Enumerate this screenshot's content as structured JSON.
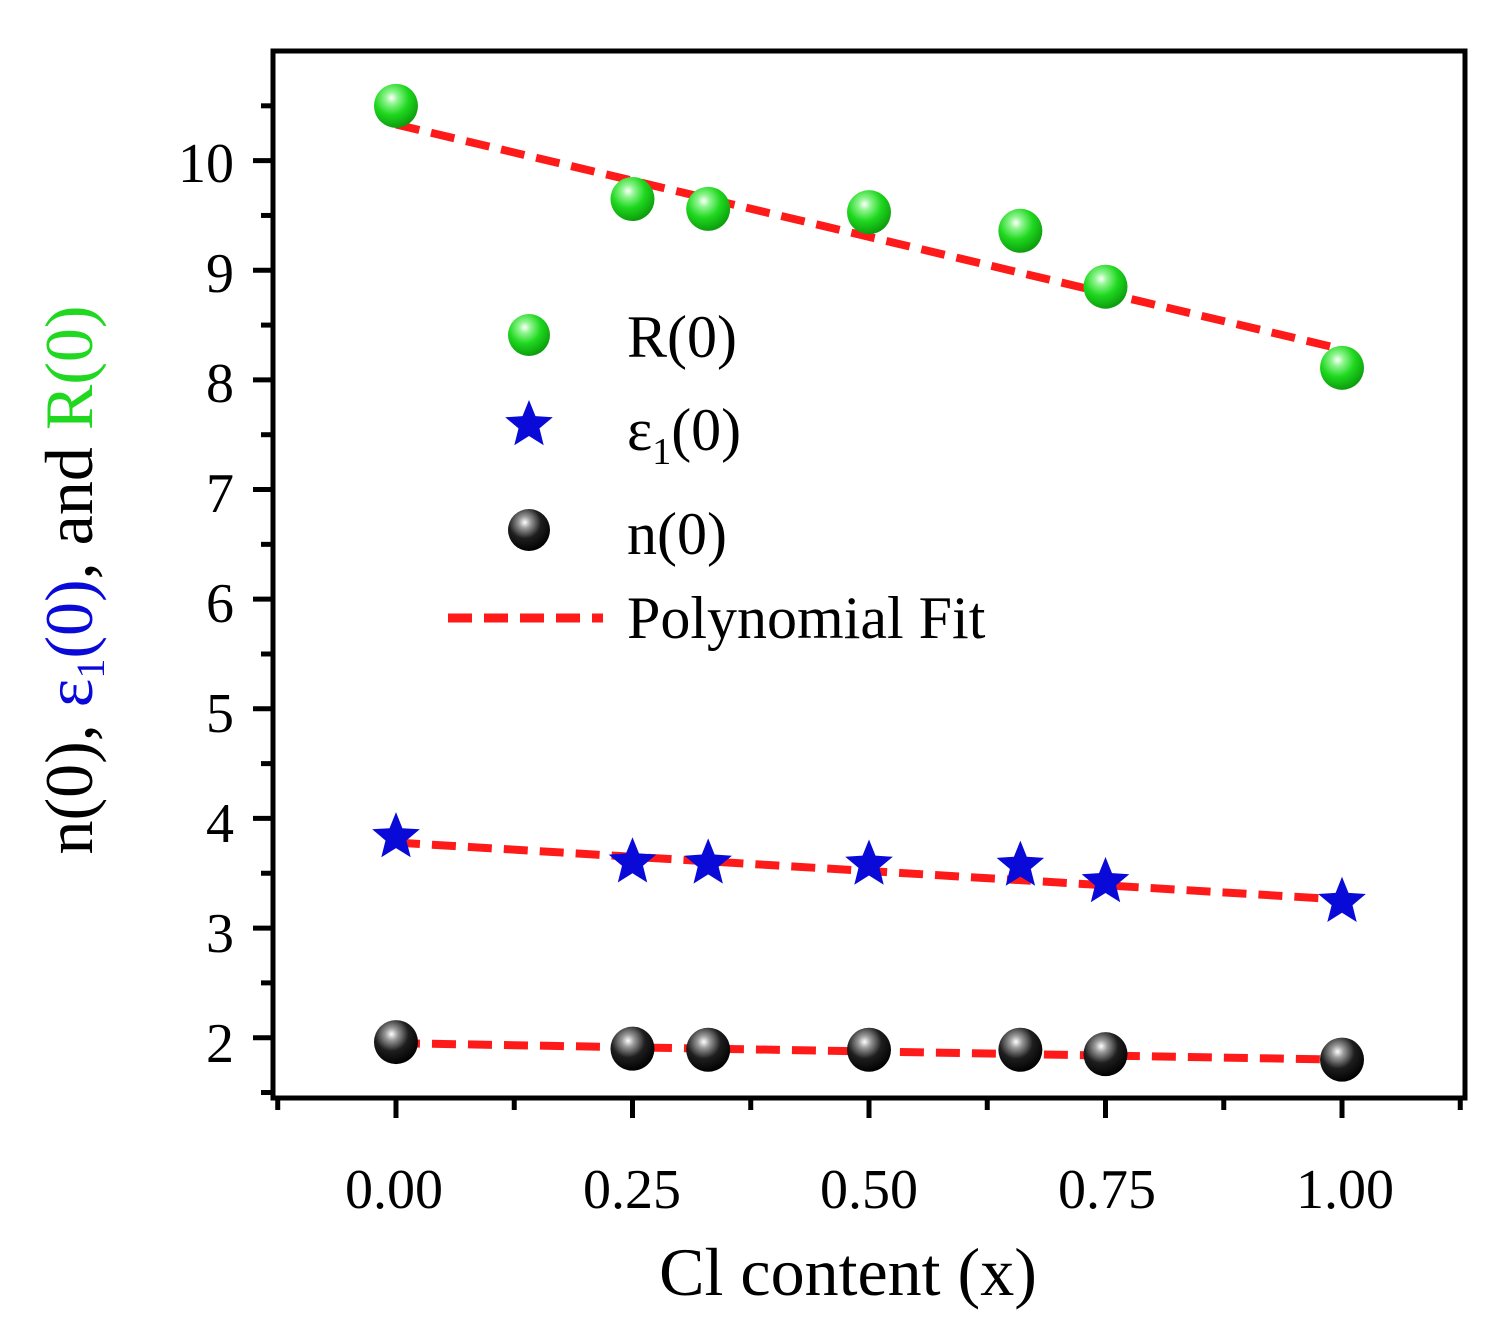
{
  "chart_data": {
    "type": "scatter",
    "title": "",
    "xlabel": "Cl content (x)",
    "ylabel_parts": {
      "n": "n(0), ",
      "eps_symbol": "ε",
      "eps_sub": "1",
      "eps_rest": "(0)",
      "and": ", and ",
      "r": "R(0)"
    },
    "xlim": [
      -0.13,
      1.13
    ],
    "ylim": [
      1.45,
      11.0
    ],
    "x_ticks": [
      0.0,
      0.25,
      0.5,
      0.75,
      1.0
    ],
    "x_tick_labels": [
      "0.00",
      "0.25",
      "0.50",
      "0.75",
      "1.00"
    ],
    "y_ticks": [
      2,
      3,
      4,
      5,
      6,
      7,
      8,
      9,
      10
    ],
    "y_tick_labels": [
      "2",
      "3",
      "4",
      "5",
      "6",
      "7",
      "8",
      "9",
      "10"
    ],
    "grid": false,
    "legend_position": "center",
    "colors": {
      "r": "#1fd81f",
      "eps": "#0a0ad8",
      "n": "#111111",
      "fit": "#ff1a1a"
    },
    "series": [
      {
        "name": "R(0)",
        "marker": "sphere-green",
        "x": [
          0.0,
          0.25,
          0.33,
          0.5,
          0.66,
          0.75,
          1.0
        ],
        "y": [
          10.5,
          9.65,
          9.56,
          9.53,
          9.36,
          8.85,
          8.11
        ],
        "fit": [
          10.33,
          -2.05
        ]
      },
      {
        "name_symbol": "ε",
        "name_sub": "1",
        "name_rest": "(0)",
        "marker": "star-blue",
        "x": [
          0.0,
          0.25,
          0.33,
          0.5,
          0.66,
          0.75,
          1.0
        ],
        "y": [
          3.83,
          3.6,
          3.59,
          3.58,
          3.57,
          3.42,
          3.24
        ],
        "fit": [
          3.78,
          -0.52
        ]
      },
      {
        "name": "n(0)",
        "marker": "sphere-black",
        "x": [
          0.0,
          0.25,
          0.33,
          0.5,
          0.66,
          0.75,
          1.0
        ],
        "y": [
          1.96,
          1.9,
          1.89,
          1.89,
          1.89,
          1.85,
          1.8
        ],
        "fit": [
          1.95,
          -0.15
        ]
      }
    ],
    "fit_label": "Polynomial Fit"
  }
}
